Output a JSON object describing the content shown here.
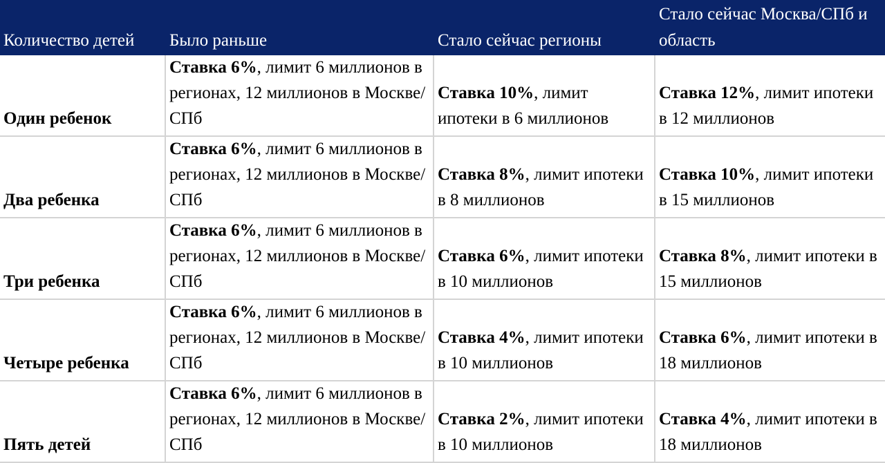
{
  "table": {
    "headers": [
      "Количество детей",
      "Было раньше",
      "Стало сейчас регионы",
      "Стало сейчас Москва/СПб и область"
    ],
    "rows": [
      {
        "label": "Один ребенок",
        "before": {
          "rate": "Ставка 6%",
          "rest": ", лимит 6 миллионов в регионах, 12 миллионов в Москве/СПб"
        },
        "regions": {
          "rate": "Ставка 10%",
          "rest": ", лимит ипотеки в 6 миллионов"
        },
        "moscow": {
          "rate": "Ставка 12%",
          "rest": ", лимит ипотеки в 12 миллионов"
        }
      },
      {
        "label": "Два ребенка",
        "before": {
          "rate": "Ставка 6%",
          "rest": ", лимит 6 миллионов в регионах, 12 миллионов в Москве/СПб"
        },
        "regions": {
          "rate": "Ставка 8%",
          "rest": ", лимит ипотеки в 8 миллионов"
        },
        "moscow": {
          "rate": "Ставка 10%",
          "rest": ", лимит ипотеки в 15 миллионов"
        }
      },
      {
        "label": "Три ребенка",
        "before": {
          "rate": "Ставка 6%",
          "rest": ", лимит 6 миллионов в регионах, 12 миллионов в Москве/СПб"
        },
        "regions": {
          "rate": "Ставка 6%",
          "rest": ", лимит ипотеки в 10 миллионов"
        },
        "moscow": {
          "rate": "Ставка 8%",
          "rest": ", лимит ипотеки в 15 миллионов"
        }
      },
      {
        "label": "Четыре ребенка",
        "before": {
          "rate": "Ставка 6%",
          "rest": ", лимит 6 миллионов в регионах, 12 миллионов в Москве/СПб"
        },
        "regions": {
          "rate": "Ставка 4%",
          "rest": ", лимит ипотеки в 10 миллионов"
        },
        "moscow": {
          "rate": "Ставка 6%",
          "rest": ", лимит ипотеки в 18 миллионов"
        }
      },
      {
        "label": "Пять детей",
        "before": {
          "rate": "Ставка 6%",
          "rest": ", лимит 6 миллионов в регионах, 12 миллионов в Москве/СПб"
        },
        "regions": {
          "rate": "Ставка 2%",
          "rest": ", лимит ипотеки в 10 миллионов"
        },
        "moscow": {
          "rate": "Ставка 4%",
          "rest": ", лимит ипотеки в 18 миллионов"
        }
      }
    ]
  },
  "colors": {
    "header_background": "#0a2469",
    "header_text": "#ffffff",
    "grid_line": "#d4d4d4"
  }
}
